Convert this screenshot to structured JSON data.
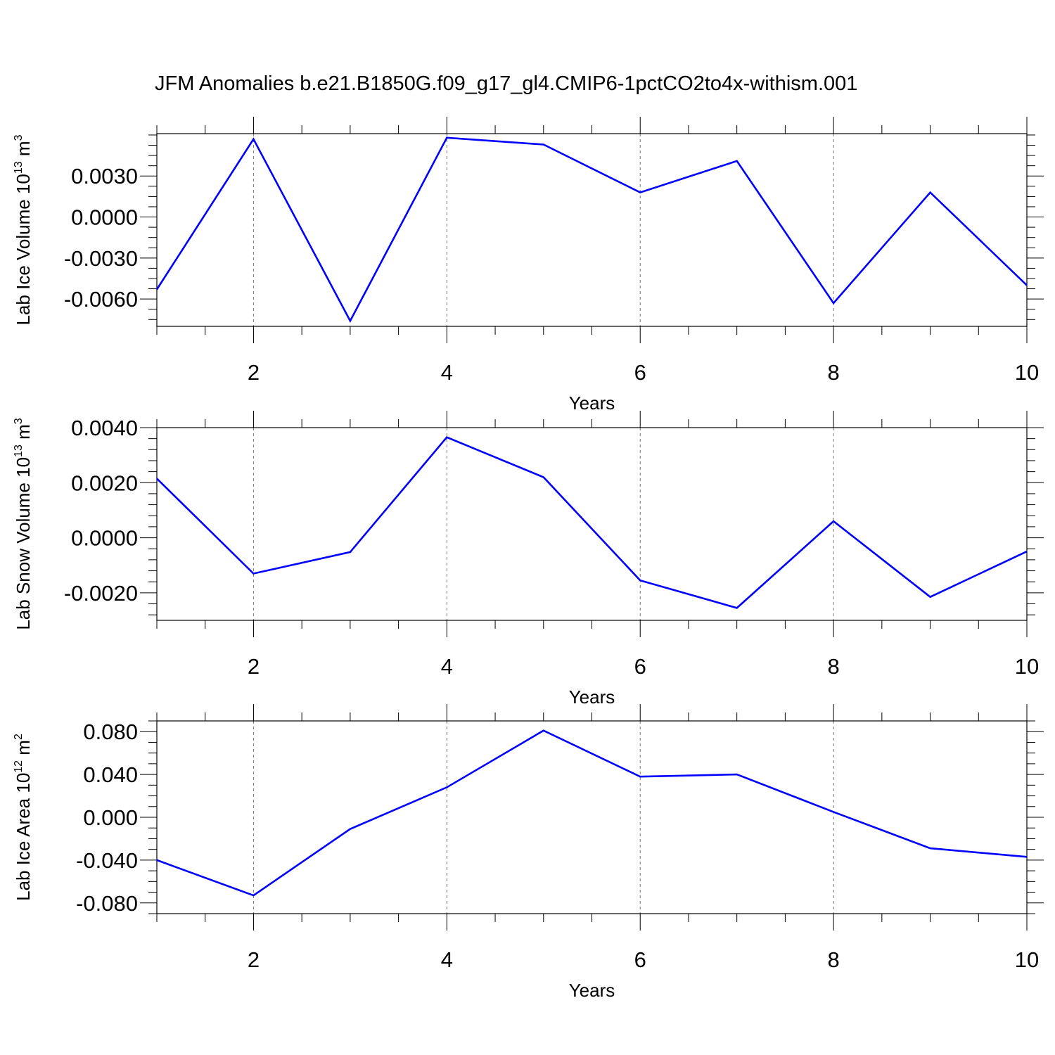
{
  "chart_data": {
    "title": "JFM Anomalies b.e21.B1850G.f09_g17_gl4.CMIP6-1pctCO2to4x-withism.001",
    "panels": [
      {
        "type": "line",
        "xlabel": "Years",
        "ylabel": "Lab Ice Volume 10",
        "ylabel_exp": "13",
        "ylabel_unit": " m",
        "ylabel_unit_exp": "3",
        "xlim": [
          1,
          10
        ],
        "ylim": [
          -0.008,
          0.0061
        ],
        "xticks": [
          2,
          4,
          6,
          8,
          10
        ],
        "yticks": [
          -0.006,
          -0.003,
          0.0,
          0.003
        ],
        "ytick_labels": [
          "-0.0060",
          "-0.0030",
          "0.0000",
          "0.0030"
        ],
        "minor_y_step": 0.00075,
        "x": [
          1,
          2,
          3,
          4,
          5,
          6,
          7,
          8,
          9,
          10
        ],
        "y": [
          -0.0053,
          0.0057,
          -0.0076,
          0.0058,
          0.0053,
          0.0018,
          0.0041,
          -0.0063,
          0.0018,
          -0.005
        ]
      },
      {
        "type": "line",
        "xlabel": "Years",
        "ylabel": "Lab Snow Volume 10",
        "ylabel_exp": "13",
        "ylabel_unit": " m",
        "ylabel_unit_exp": "3",
        "xlim": [
          1,
          10
        ],
        "ylim": [
          -0.003,
          0.004
        ],
        "xticks": [
          2,
          4,
          6,
          8,
          10
        ],
        "yticks": [
          -0.002,
          0.0,
          0.002,
          0.004
        ],
        "ytick_labels": [
          "-0.0020",
          "0.0000",
          "0.0020",
          "0.0040"
        ],
        "minor_y_step": 0.0004,
        "x": [
          1,
          2,
          3,
          4,
          5,
          6,
          7,
          8,
          9,
          10
        ],
        "y": [
          0.00215,
          -0.0013,
          -0.00052,
          0.00365,
          0.0022,
          -0.00155,
          -0.00255,
          0.0006,
          -0.00215,
          -0.0005
        ]
      },
      {
        "type": "line",
        "xlabel": "Years",
        "ylabel": "Lab Ice Area 10",
        "ylabel_exp": "12",
        "ylabel_unit": " m",
        "ylabel_unit_exp": "2",
        "xlim": [
          1,
          10
        ],
        "ylim": [
          -0.09,
          0.09
        ],
        "xticks": [
          2,
          4,
          6,
          8,
          10
        ],
        "yticks": [
          -0.08,
          -0.04,
          0.0,
          0.04,
          0.08
        ],
        "ytick_labels": [
          "-0.080",
          "-0.040",
          "0.000",
          "0.040",
          "0.080"
        ],
        "minor_y_step": 0.01,
        "x": [
          1,
          2,
          3,
          4,
          5,
          6,
          7,
          8,
          9,
          10
        ],
        "y": [
          -0.04,
          -0.073,
          -0.011,
          0.028,
          0.081,
          0.038,
          0.04,
          0.005,
          -0.029,
          -0.037
        ]
      }
    ],
    "colors": {
      "series": "#0000ff",
      "axes": "#000000",
      "grid": "#777777"
    },
    "grid": "vertical dashed at major x ticks"
  }
}
